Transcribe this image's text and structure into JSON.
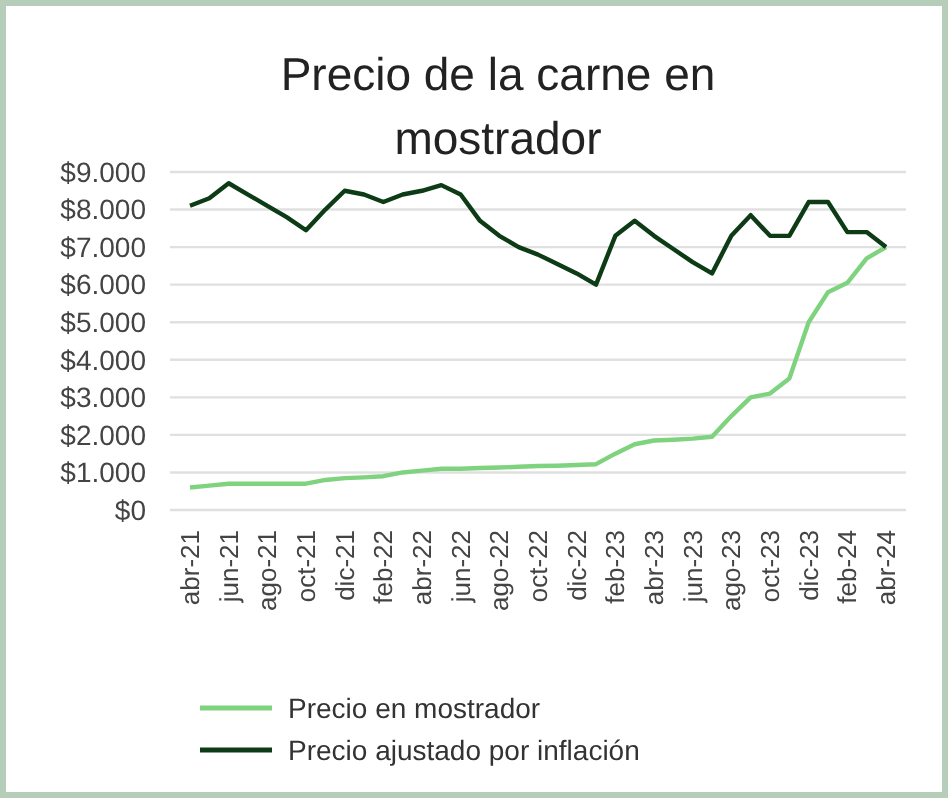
{
  "chart_data": {
    "type": "line",
    "title": "Precio de la carne en mostrador",
    "categories": [
      "abr-21",
      null,
      "jun-21",
      null,
      "ago-21",
      null,
      "oct-21",
      null,
      "dic-21",
      null,
      "feb-22",
      null,
      "abr-22",
      null,
      "jun-22",
      null,
      "ago-22",
      null,
      "oct-22",
      null,
      "dic-22",
      null,
      "feb-23",
      null,
      "abr-23",
      null,
      "jun-23",
      null,
      "ago-23",
      null,
      "oct-23",
      null,
      "dic-23",
      null,
      "feb-24",
      null,
      "abr-24"
    ],
    "series": [
      {
        "name": "Precio en mostrador",
        "color": "#7fd37f",
        "values": [
          600,
          650,
          700,
          700,
          700,
          700,
          700,
          800,
          850,
          870,
          900,
          1000,
          1050,
          1100,
          1100,
          1120,
          1130,
          1150,
          1170,
          1180,
          1200,
          1220,
          1500,
          1750,
          1850,
          1870,
          1900,
          1950,
          2500,
          3000,
          3100,
          3500,
          5000,
          5800,
          6050,
          6700,
          7000
        ]
      },
      {
        "name": "Precio ajustado por inflación",
        "color": "#0d3b16",
        "values": [
          8100,
          8300,
          8700,
          8400,
          8100,
          7800,
          7450,
          8000,
          8500,
          8400,
          8200,
          8400,
          8500,
          8650,
          8400,
          7700,
          7300,
          7000,
          6800,
          6550,
          6300,
          6000,
          7300,
          7700,
          7300,
          6950,
          6600,
          6300,
          7300,
          7850,
          7300,
          7300,
          8200,
          8200,
          7400,
          7400,
          7000
        ]
      }
    ],
    "ylim": [
      0,
      9000
    ],
    "yticks": [
      {
        "value": 0,
        "label": "$0"
      },
      {
        "value": 1000,
        "label": "$1.000"
      },
      {
        "value": 2000,
        "label": "$2.000"
      },
      {
        "value": 3000,
        "label": "$3.000"
      },
      {
        "value": 4000,
        "label": "$4.000"
      },
      {
        "value": 5000,
        "label": "$5.000"
      },
      {
        "value": 6000,
        "label": "$6.000"
      },
      {
        "value": 7000,
        "label": "$7.000"
      },
      {
        "value": 8000,
        "label": "$8.000"
      },
      {
        "value": 9000,
        "label": "$9.000"
      }
    ],
    "grid": "y",
    "legend": "bottom",
    "marker": "none",
    "line_style": "solid"
  }
}
